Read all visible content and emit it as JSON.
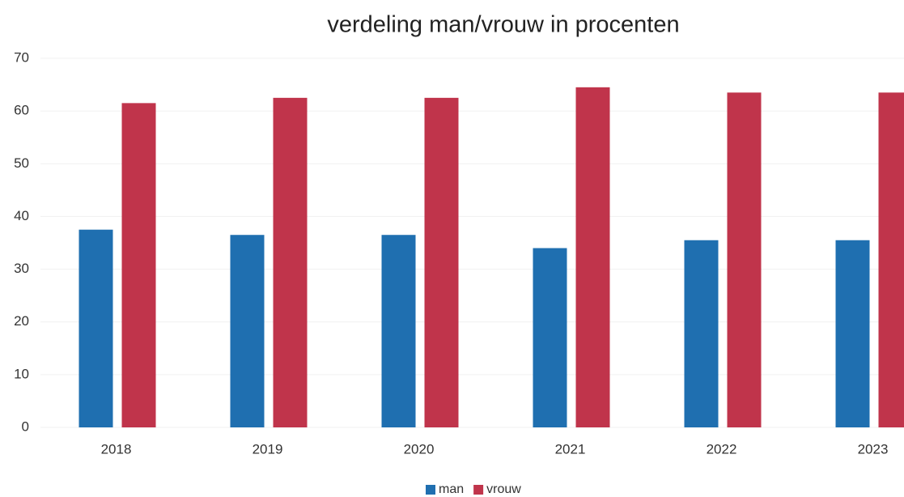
{
  "chart_data": {
    "type": "bar",
    "title": "verdeling man/vrouw in procenten",
    "categories": [
      "2018",
      "2019",
      "2020",
      "2021",
      "2022",
      "2023"
    ],
    "series": [
      {
        "name": "man",
        "color": "#1f6fb0",
        "values": [
          37.5,
          36.5,
          36.5,
          34,
          35.5,
          35.5
        ]
      },
      {
        "name": "vrouw",
        "color": "#c0344b",
        "values": [
          61.5,
          62.5,
          62.5,
          64.5,
          63.5,
          63.5
        ]
      }
    ],
    "ylim": [
      0,
      70
    ],
    "yticks": [
      0,
      10,
      20,
      30,
      40,
      50,
      60,
      70
    ],
    "grid": true,
    "legend": "bottom"
  }
}
